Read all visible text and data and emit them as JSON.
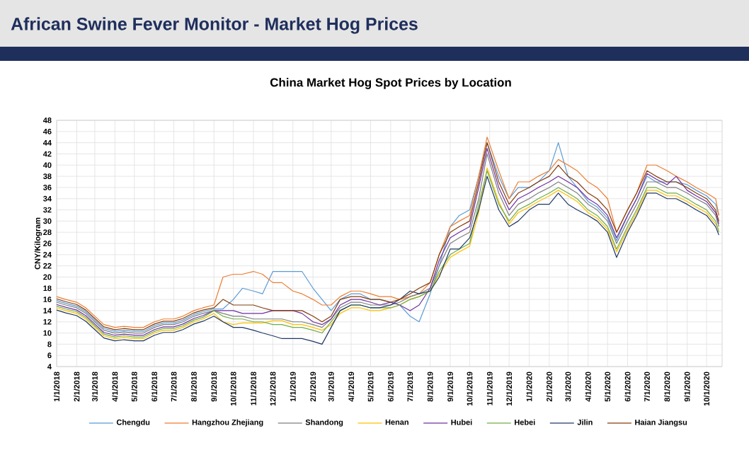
{
  "chart_data": {
    "type": "line",
    "title": "African Swine Fever Monitor - Market Hog Prices",
    "subtitle": "China Market Hog Spot Prices by Location",
    "ylabel": "CNY/Kilogram",
    "x": [
      "2018-01-01",
      "2018-01-15",
      "2018-02-01",
      "2018-02-15",
      "2018-03-01",
      "2018-03-15",
      "2018-04-01",
      "2018-04-15",
      "2018-05-01",
      "2018-05-15",
      "2018-06-01",
      "2018-06-15",
      "2018-07-01",
      "2018-07-15",
      "2018-08-01",
      "2018-08-15",
      "2018-09-01",
      "2018-09-15",
      "2018-10-01",
      "2018-10-15",
      "2018-11-01",
      "2018-11-15",
      "2018-12-01",
      "2018-12-15",
      "2019-01-01",
      "2019-01-15",
      "2019-02-01",
      "2019-02-15",
      "2019-03-01",
      "2019-03-15",
      "2019-04-01",
      "2019-04-15",
      "2019-05-01",
      "2019-05-15",
      "2019-06-01",
      "2019-06-15",
      "2019-07-01",
      "2019-07-15",
      "2019-08-01",
      "2019-08-15",
      "2019-09-01",
      "2019-09-15",
      "2019-10-01",
      "2019-10-15",
      "2019-10-28",
      "2019-11-15",
      "2019-12-01",
      "2019-12-15",
      "2020-01-01",
      "2020-01-15",
      "2020-02-01",
      "2020-02-15",
      "2020-03-01",
      "2020-03-15",
      "2020-04-01",
      "2020-04-15",
      "2020-05-01",
      "2020-05-15",
      "2020-06-01",
      "2020-06-15",
      "2020-07-01",
      "2020-07-15",
      "2020-08-01",
      "2020-08-15",
      "2020-09-01",
      "2020-09-15",
      "2020-10-01",
      "2020-10-15",
      "2020-10-20"
    ],
    "series": [
      {
        "name": "Chengdu",
        "color": "#5b9bd5",
        "values": [
          15.8,
          15.3,
          14.8,
          13.8,
          12.3,
          10.8,
          10.3,
          10.5,
          10.3,
          10.3,
          11.3,
          11.8,
          11.8,
          12.3,
          13.3,
          13.8,
          14.3,
          14.3,
          16,
          18,
          17.5,
          17,
          21,
          21,
          21,
          21,
          18,
          16,
          14,
          16,
          17,
          17,
          16,
          16,
          15.5,
          15,
          13,
          12,
          17,
          22,
          29,
          31,
          32,
          38,
          44,
          38,
          34,
          36,
          36,
          37,
          39,
          44,
          38,
          36,
          33.5,
          32.5,
          30.5,
          26.5,
          31,
          34,
          38,
          37,
          37,
          37,
          36.5,
          35.5,
          34.5,
          33,
          31
        ]
      },
      {
        "name": "Hangzhou Zhejiang",
        "color": "#ed7d31",
        "values": [
          16.5,
          16,
          15.5,
          14.5,
          13,
          11.5,
          11,
          11.2,
          11,
          11,
          12,
          12.5,
          12.5,
          13,
          14,
          14.5,
          15,
          20,
          20.5,
          20.5,
          21,
          20.5,
          19,
          19,
          17.5,
          17,
          16,
          15,
          15,
          16.5,
          17.5,
          17.5,
          17,
          16.5,
          16.5,
          16,
          16.5,
          17,
          19,
          24,
          29,
          30,
          31,
          38,
          45,
          39,
          34,
          37,
          37,
          38,
          39,
          41,
          40,
          39,
          37,
          36,
          34,
          28,
          32,
          35,
          40,
          40,
          39,
          38,
          37,
          36,
          35,
          34,
          31
        ]
      },
      {
        "name": "Shandong",
        "color": "#7f7f7f",
        "values": [
          15.5,
          15,
          14.5,
          13.5,
          12,
          10.5,
          10,
          10.2,
          10,
          10,
          11,
          11.5,
          11.5,
          12,
          13,
          13.5,
          14,
          13.5,
          13,
          13,
          12.5,
          12.5,
          12.5,
          12.5,
          12,
          12,
          11.5,
          11,
          12.5,
          14.5,
          15.5,
          15.5,
          15,
          15,
          15,
          15.5,
          16.5,
          17,
          18,
          22,
          26,
          27,
          28,
          34,
          42,
          35,
          31,
          33,
          34,
          35,
          36,
          37,
          36,
          35,
          33,
          32,
          30,
          26,
          30,
          33,
          37,
          37,
          36,
          36,
          35,
          34,
          33,
          31,
          29
        ]
      },
      {
        "name": "Henan",
        "color": "#ffc000",
        "values": [
          14.5,
          14,
          13.5,
          12.5,
          11,
          9.5,
          9,
          9.2,
          9,
          9,
          10,
          10.5,
          10.5,
          11,
          12,
          12.5,
          13.5,
          12,
          11.5,
          11.8,
          11.8,
          11.8,
          12.2,
          12.2,
          11.5,
          11.5,
          11,
          10.5,
          11.5,
          13.5,
          14.5,
          14.5,
          14,
          14,
          14.5,
          15,
          16,
          16.5,
          17.5,
          20.5,
          23.5,
          24.5,
          25.5,
          31.5,
          39.5,
          33.5,
          29.5,
          31.5,
          32.5,
          33.5,
          34.5,
          35.5,
          34.5,
          33.5,
          31.5,
          30.5,
          28.5,
          24.5,
          28.5,
          31.5,
          35.5,
          35.5,
          34.5,
          34.5,
          33.5,
          32.5,
          31.5,
          29.5,
          28.5
        ]
      },
      {
        "name": "Hubei",
        "color": "#7030a0",
        "values": [
          15.1,
          14.6,
          14.1,
          13.1,
          11.6,
          10.1,
          9.6,
          9.8,
          9.6,
          9.6,
          10.6,
          11.1,
          11.1,
          11.6,
          12.6,
          13.1,
          14,
          14,
          14,
          13.5,
          13.5,
          13.5,
          14,
          14,
          14,
          13.5,
          12,
          11.5,
          12.5,
          15,
          16,
          16,
          15.5,
          15,
          15.5,
          15,
          14,
          15,
          18,
          23,
          27,
          28,
          29,
          36,
          43,
          36,
          32,
          34,
          35,
          36,
          37,
          38,
          37,
          36,
          34,
          33,
          31,
          27,
          31,
          34,
          38.5,
          37.5,
          36.5,
          38,
          35.5,
          34.5,
          33.5,
          31.5,
          29.5
        ]
      },
      {
        "name": "Hebei",
        "color": "#70ad47",
        "values": [
          14.8,
          14.3,
          13.8,
          12.8,
          11.3,
          9.8,
          9.3,
          9.5,
          9.3,
          9.3,
          10.3,
          10.8,
          10.8,
          11.3,
          12.3,
          12.8,
          14,
          13,
          12.5,
          12.5,
          12,
          12,
          11.5,
          11.5,
          11,
          11,
          10.5,
          10,
          12,
          14,
          15,
          15,
          14.5,
          14.5,
          14.5,
          15,
          16,
          16.5,
          17.5,
          21,
          24,
          25,
          26,
          33,
          39,
          33,
          30,
          32,
          33,
          34,
          35,
          36,
          35,
          34,
          32,
          31,
          29,
          25,
          29,
          32,
          36,
          36,
          35,
          35,
          34,
          33,
          32,
          30,
          28
        ]
      },
      {
        "name": "Jilin",
        "color": "#1f3864",
        "values": [
          14.1,
          13.6,
          13.1,
          12.1,
          10.6,
          9.1,
          8.6,
          8.8,
          8.6,
          8.6,
          9.6,
          10.1,
          10.1,
          10.6,
          11.6,
          12.1,
          13,
          12,
          11,
          11,
          10.5,
          10,
          9.5,
          9,
          9,
          9,
          8.5,
          8,
          11,
          14,
          15,
          15,
          14.5,
          14.5,
          15,
          16,
          17.5,
          17,
          17.5,
          20,
          25,
          25,
          27,
          32,
          38,
          32,
          29,
          30,
          32,
          33,
          33,
          35,
          33,
          32,
          31,
          30,
          28,
          23.5,
          28,
          31,
          35,
          35,
          34,
          34,
          33,
          32,
          31,
          29,
          27.5
        ]
      },
      {
        "name": "Haian Jiangsu",
        "color": "#843c0c",
        "values": [
          16.1,
          15.6,
          15.1,
          14.1,
          12.6,
          11.1,
          10.6,
          10.8,
          10.6,
          10.6,
          11.6,
          12.1,
          12.1,
          12.6,
          13.6,
          14.1,
          14.5,
          16,
          15,
          15,
          15,
          14.5,
          14,
          14,
          14,
          14,
          13,
          12,
          13,
          16,
          16.5,
          16.5,
          16,
          16,
          15.5,
          16,
          17,
          18,
          19,
          24,
          28,
          29,
          30,
          37,
          44,
          37,
          33,
          35,
          36,
          37,
          38,
          40,
          38,
          37,
          35,
          34,
          32,
          28,
          32,
          35,
          39,
          38,
          37,
          37,
          36,
          35,
          34,
          32,
          30
        ]
      }
    ],
    "xlim": [
      "2018-01-01",
      "2020-10-25"
    ],
    "xticks": [
      {
        "value": "2018-01-01",
        "label": "1/1/2018"
      },
      {
        "value": "2018-02-01",
        "label": "2/1/2018"
      },
      {
        "value": "2018-03-01",
        "label": "3/1/2018"
      },
      {
        "value": "2018-04-01",
        "label": "4/1/2018"
      },
      {
        "value": "2018-05-01",
        "label": "5/1/2018"
      },
      {
        "value": "2018-06-01",
        "label": "6/1/2018"
      },
      {
        "value": "2018-07-01",
        "label": "7/1/2018"
      },
      {
        "value": "2018-08-01",
        "label": "8/1/2018"
      },
      {
        "value": "2018-09-01",
        "label": "9/1/2018"
      },
      {
        "value": "2018-10-01",
        "label": "10/1/2018"
      },
      {
        "value": "2018-11-01",
        "label": "11/1/2018"
      },
      {
        "value": "2018-12-01",
        "label": "12/1/2018"
      },
      {
        "value": "2019-01-01",
        "label": "1/1/2019"
      },
      {
        "value": "2019-02-01",
        "label": "2/1/2019"
      },
      {
        "value": "2019-03-01",
        "label": "3/1/2019"
      },
      {
        "value": "2019-04-01",
        "label": "4/1/2019"
      },
      {
        "value": "2019-05-01",
        "label": "5/1/2019"
      },
      {
        "value": "2019-06-01",
        "label": "6/1/2019"
      },
      {
        "value": "2019-07-01",
        "label": "7/1/2019"
      },
      {
        "value": "2019-08-01",
        "label": "8/1/2019"
      },
      {
        "value": "2019-09-01",
        "label": "9/1/2019"
      },
      {
        "value": "2019-10-01",
        "label": "10/1/2019"
      },
      {
        "value": "2019-11-01",
        "label": "11/1/2019"
      },
      {
        "value": "2019-12-01",
        "label": "12/1/2019"
      },
      {
        "value": "2020-01-01",
        "label": "1/1/2020"
      },
      {
        "value": "2020-02-01",
        "label": "2/1/2020"
      },
      {
        "value": "2020-03-01",
        "label": "3/1/2020"
      },
      {
        "value": "2020-04-01",
        "label": "4/1/2020"
      },
      {
        "value": "2020-05-01",
        "label": "5/1/2020"
      },
      {
        "value": "2020-06-01",
        "label": "6/1/2020"
      },
      {
        "value": "2020-07-01",
        "label": "7/1/2020"
      },
      {
        "value": "2020-08-01",
        "label": "8/1/2020"
      },
      {
        "value": "2020-09-01",
        "label": "9/1/2020"
      },
      {
        "value": "2020-10-01",
        "label": "10/1/2020"
      }
    ],
    "ylim": [
      4,
      48
    ],
    "yticks": [
      4,
      6,
      8,
      10,
      12,
      14,
      16,
      18,
      20,
      22,
      24,
      26,
      28,
      30,
      32,
      34,
      36,
      38,
      40,
      42,
      44,
      46,
      48
    ],
    "grid": true,
    "legend": "bottom",
    "marker": "none",
    "line_style": "solid"
  }
}
